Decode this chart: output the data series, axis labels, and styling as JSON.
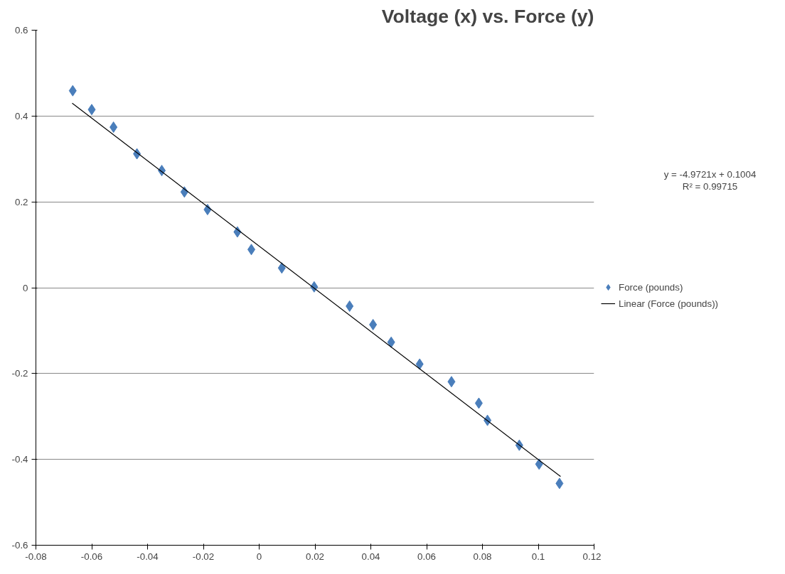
{
  "chart_data": {
    "type": "scatter",
    "title": "Voltage (x) vs. Force (y)",
    "x": [
      -0.0668,
      -0.06,
      -0.0522,
      -0.0438,
      -0.0349,
      -0.0268,
      -0.0185,
      -0.0078,
      -0.0028,
      0.0081,
      0.0197,
      0.0324,
      0.0408,
      0.0473,
      0.0575,
      0.0689,
      0.0787,
      0.0818,
      0.0932,
      0.1003,
      0.1076
    ],
    "series": [
      {
        "name": "Force (pounds)",
        "color": "#4a7ebb",
        "marker": "diamond",
        "values": [
          0.459,
          0.415,
          0.374,
          0.312,
          0.273,
          0.223,
          0.182,
          0.13,
          0.089,
          0.046,
          0.002,
          -0.043,
          -0.086,
          -0.127,
          -0.178,
          -0.219,
          -0.269,
          -0.309,
          -0.367,
          -0.411,
          -0.456
        ]
      },
      {
        "name": "Linear (Force (pounds))",
        "type": "line",
        "color": "#000000",
        "marker": "none",
        "x": [
          -0.067,
          0.108
        ],
        "values": [
          0.43,
          -0.44
        ]
      }
    ],
    "xlim": [
      -0.08,
      0.12
    ],
    "xticks": [
      -0.08,
      -0.06,
      -0.04,
      -0.02,
      0,
      0.02,
      0.04,
      0.06,
      0.08,
      0.1,
      0.12
    ],
    "ylim": [
      -0.6,
      0.6
    ],
    "yticks": [
      -0.6,
      -0.4,
      -0.2,
      0,
      0.2,
      0.4,
      0.6
    ],
    "grid": "y",
    "legend": "right",
    "annotations": [
      "y = -4.9721x + 0.1004",
      "R² = 0.99715"
    ]
  }
}
